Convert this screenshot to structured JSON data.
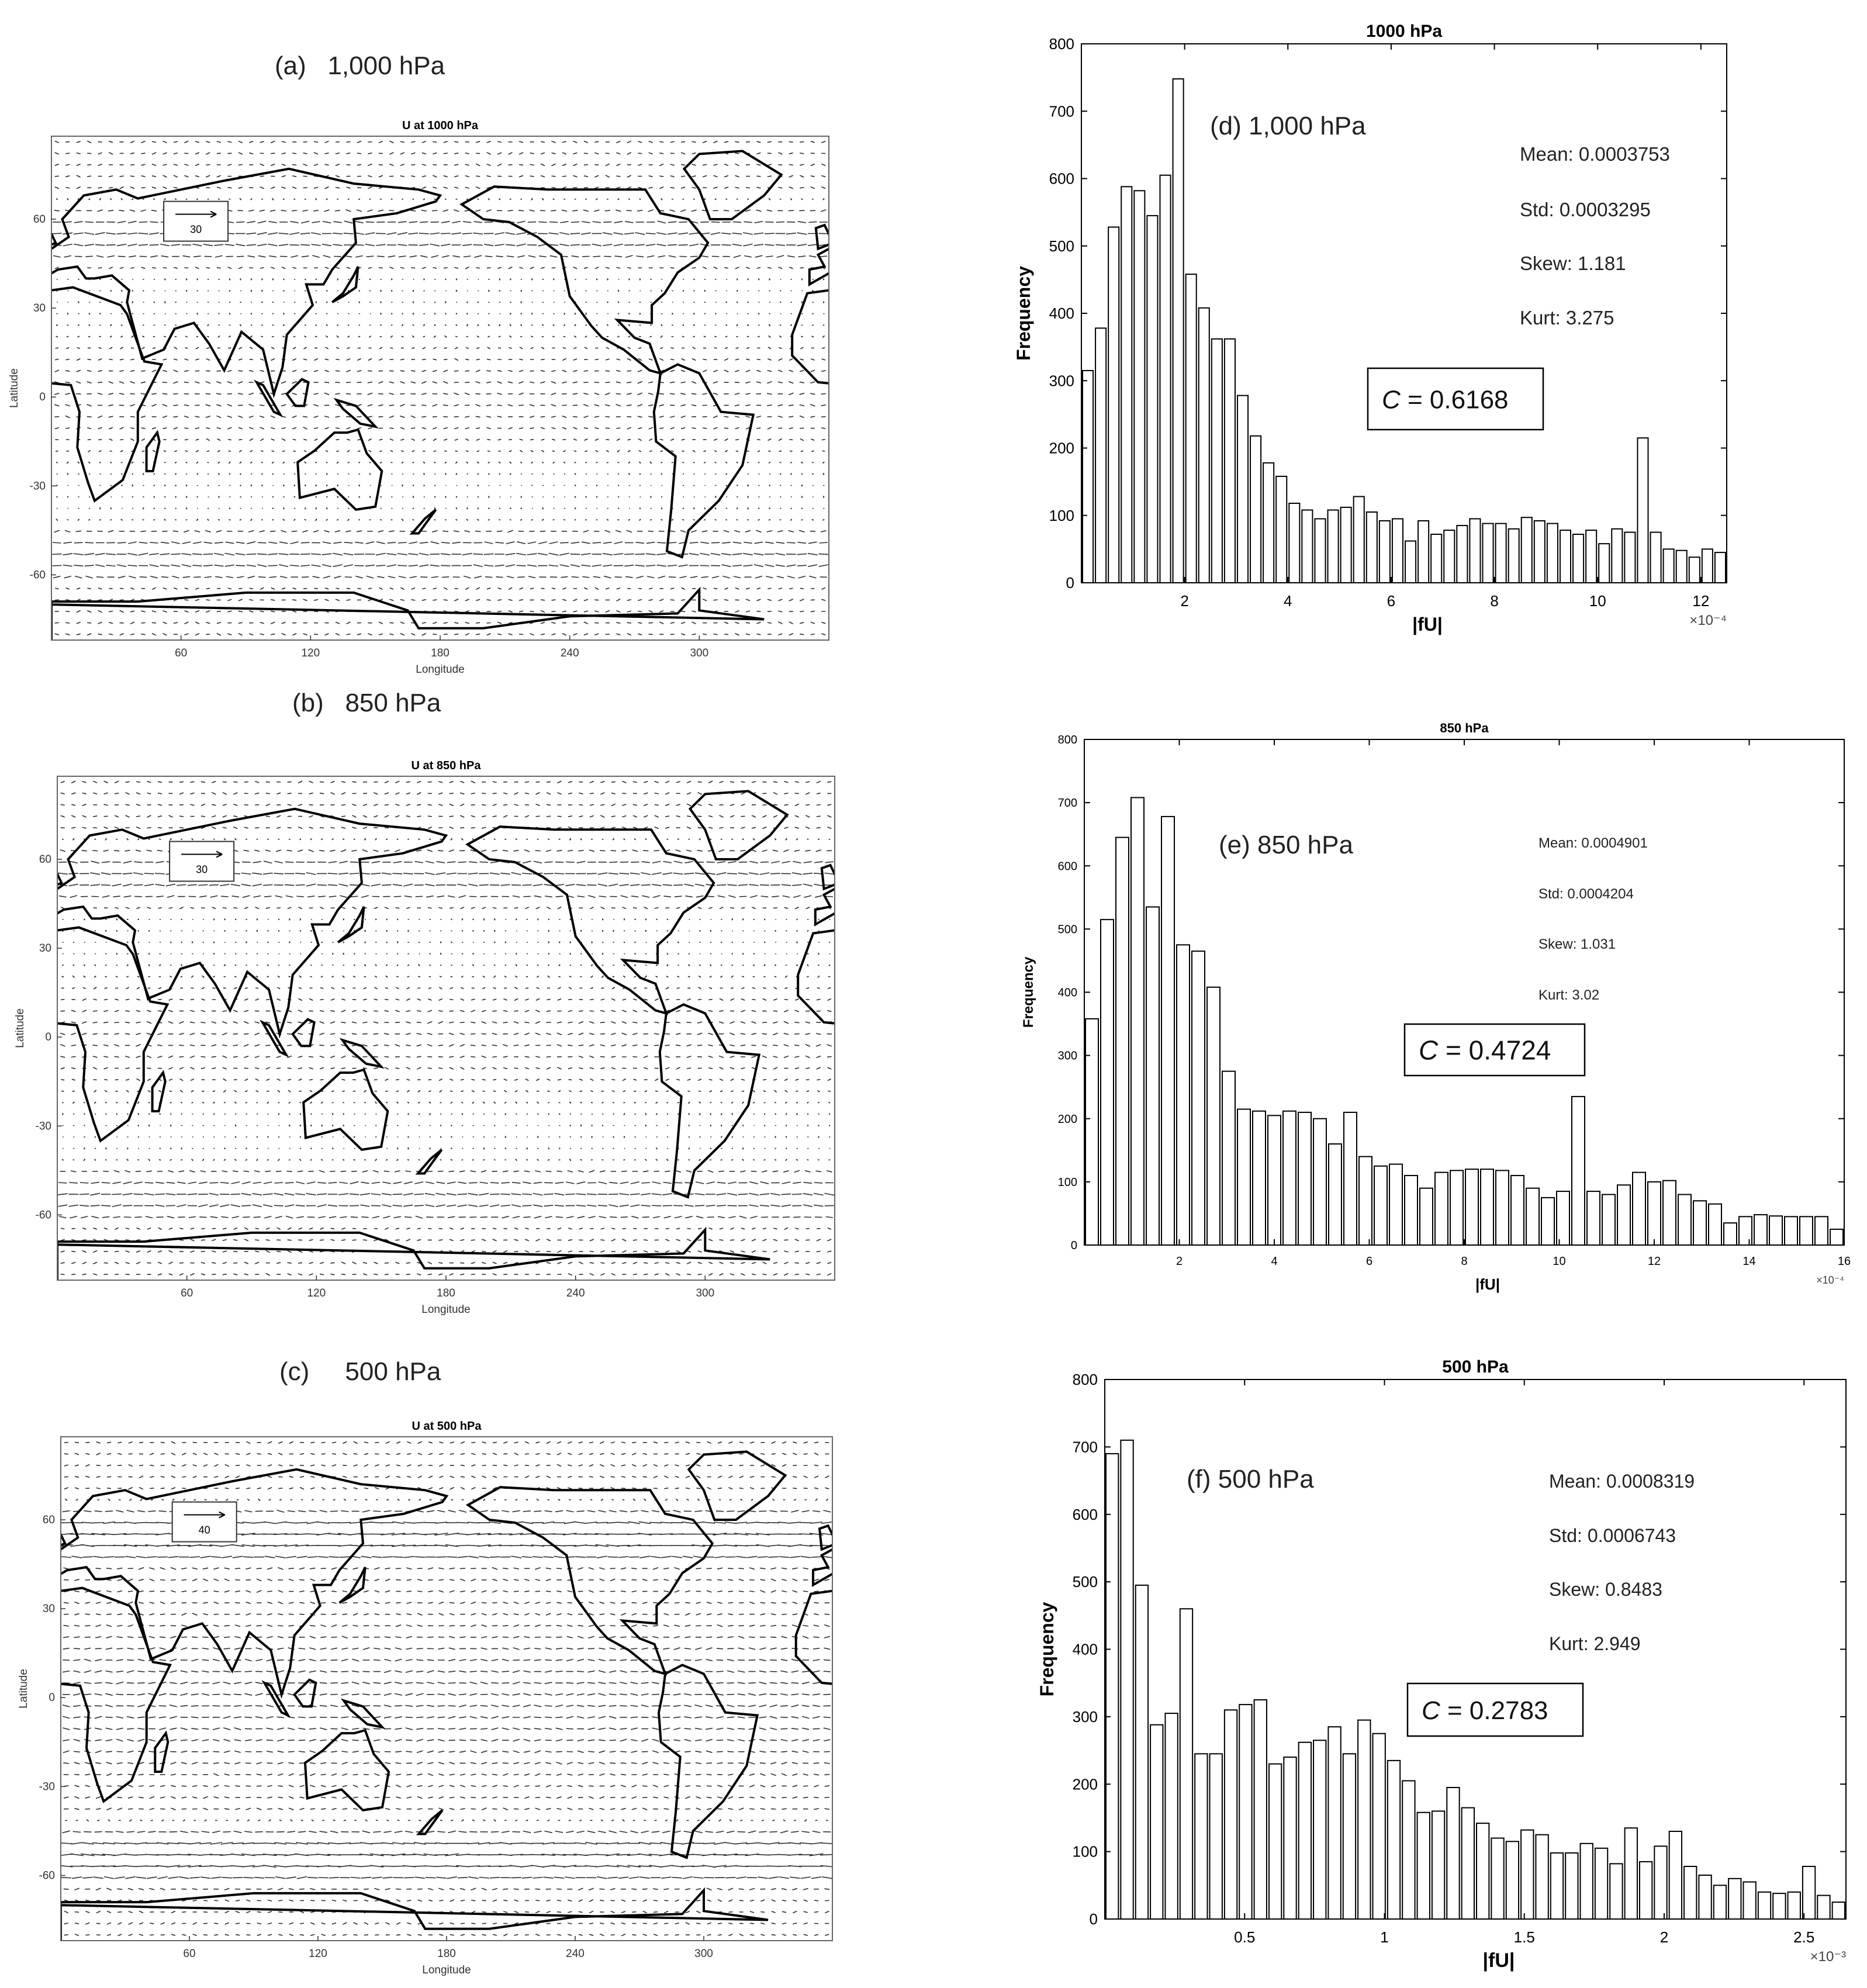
{
  "captions": {
    "a": "(a)   1,000 hPa",
    "b": "(b)   850 hPa",
    "c": "(c)     500 hPa"
  },
  "maps": [
    {
      "id": "a",
      "title": "U at 1000 hPa",
      "ref_arrow_label": "30",
      "xlabel": "Longitude",
      "ylabel": "Latitude",
      "xticks": [
        "60",
        "120",
        "180",
        "240",
        "300"
      ],
      "yticks": [
        "60",
        "30",
        "0",
        "-30",
        "-60"
      ]
    },
    {
      "id": "b",
      "title": "U at 850 hPa",
      "ref_arrow_label": "30",
      "xlabel": "Longitude",
      "ylabel": "Latitude",
      "xticks": [
        "60",
        "120",
        "180",
        "240",
        "300"
      ],
      "yticks": [
        "60",
        "30",
        "0",
        "-30",
        "-60"
      ]
    },
    {
      "id": "c",
      "title": "U at 500 hPa",
      "ref_arrow_label": "40",
      "xlabel": "Longitude",
      "ylabel": "Latitude",
      "xticks": [
        "60",
        "120",
        "180",
        "240",
        "300"
      ],
      "yticks": [
        "60",
        "30",
        "0",
        "-30",
        "-60"
      ]
    }
  ],
  "chart_data": [
    {
      "type": "bar",
      "title": "1000 hPa",
      "panel_label": "(d) 1,000 hPa",
      "xlabel": "|fU|",
      "ylabel": "Frequency",
      "x_exponent": "×10⁻⁴",
      "xlim": [
        0,
        12.5
      ],
      "ylim": [
        0,
        800
      ],
      "xticks": [
        2,
        4,
        6,
        8,
        10,
        12
      ],
      "yticks": [
        0,
        100,
        200,
        300,
        400,
        500,
        600,
        700,
        800
      ],
      "stats": [
        "Mean: 0.0003753",
        "Std: 0.0003295",
        "Skew: 1.181",
        "Kurt: 3.275"
      ],
      "c_label": "C",
      "c_value": "= 0.6168",
      "values": [
        315,
        378,
        528,
        588,
        582,
        545,
        605,
        748,
        458,
        408,
        362,
        362,
        278,
        218,
        178,
        158,
        118,
        108,
        95,
        108,
        112,
        128,
        105,
        92,
        95,
        62,
        92,
        72,
        78,
        85,
        95,
        88,
        88,
        80,
        97,
        92,
        88,
        78,
        72,
        78,
        58,
        80,
        75,
        215,
        75,
        50,
        48,
        38,
        50,
        45
      ]
    },
    {
      "type": "bar",
      "title": "850 hPa",
      "panel_label": "(e)  850 hPa",
      "xlabel": "|fU|",
      "ylabel": "Frequency",
      "x_exponent": "×10⁻⁴",
      "xlim": [
        0,
        16
      ],
      "ylim": [
        0,
        800
      ],
      "xticks": [
        2,
        4,
        6,
        8,
        10,
        12,
        14,
        16
      ],
      "yticks": [
        0,
        100,
        200,
        300,
        400,
        500,
        600,
        700,
        800
      ],
      "stats": [
        "Mean: 0.0004901",
        "Std: 0.0004204",
        "Skew: 1.031",
        "Kurt: 3.02"
      ],
      "c_label": "C",
      "c_value": "= 0.4724",
      "values": [
        358,
        515,
        645,
        708,
        535,
        678,
        475,
        465,
        408,
        275,
        215,
        212,
        205,
        212,
        210,
        200,
        160,
        210,
        140,
        125,
        128,
        110,
        90,
        115,
        118,
        120,
        120,
        118,
        110,
        90,
        75,
        85,
        235,
        85,
        80,
        95,
        115,
        100,
        102,
        80,
        70,
        65,
        35,
        45,
        48,
        46,
        45,
        45,
        45,
        25
      ]
    },
    {
      "type": "bar",
      "title": "500 hPa",
      "panel_label": "(f)   500 hPa",
      "xlabel": "|fU|",
      "ylabel": "Frequency",
      "x_exponent": "×10⁻³",
      "xlim": [
        0,
        2.65
      ],
      "ylim": [
        0,
        800
      ],
      "xticks": [
        0.5,
        1,
        1.5,
        2,
        2.5
      ],
      "yticks": [
        0,
        100,
        200,
        300,
        400,
        500,
        600,
        700,
        800
      ],
      "stats": [
        "Mean: 0.0008319",
        "Std: 0.0006743",
        "Skew: 0.8483",
        "Kurt: 2.949"
      ],
      "c_label": "C",
      "c_value": "= 0.2783",
      "values": [
        690,
        710,
        495,
        288,
        305,
        460,
        245,
        245,
        310,
        318,
        325,
        230,
        240,
        262,
        265,
        285,
        245,
        295,
        275,
        235,
        205,
        158,
        160,
        195,
        165,
        142,
        120,
        115,
        132,
        125,
        98,
        98,
        112,
        105,
        82,
        135,
        85,
        108,
        130,
        78,
        65,
        50,
        60,
        55,
        40,
        38,
        40,
        78,
        35,
        25
      ]
    }
  ]
}
